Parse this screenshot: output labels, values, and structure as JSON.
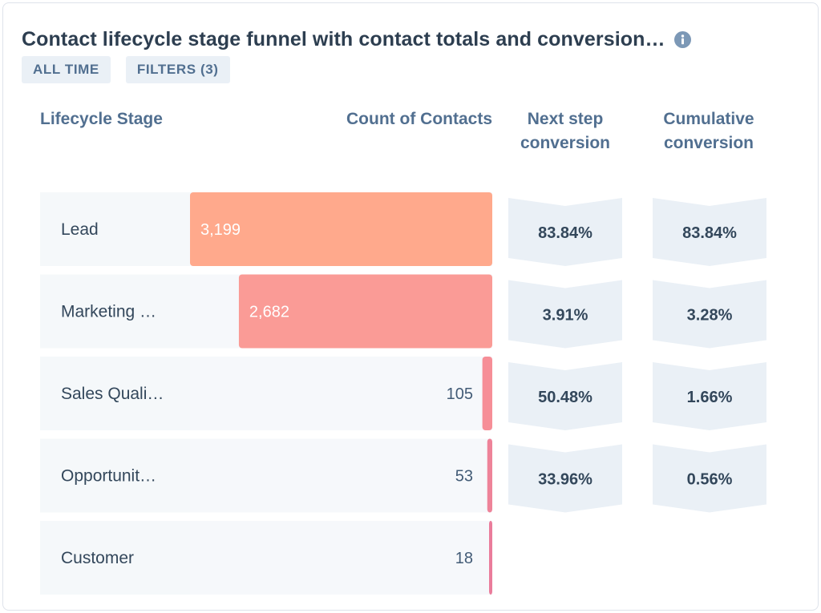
{
  "header": {
    "title": "Contact lifecycle stage funnel with contact totals and conversion…",
    "info_icon": "info-icon",
    "chips": [
      {
        "label": "ALL TIME"
      },
      {
        "label": "FILTERS (3)"
      }
    ]
  },
  "columns": {
    "stage": "Lifecycle Stage",
    "count": "Count of Contacts",
    "next": "Next step conversion",
    "cumulative": "Cumulative conversion"
  },
  "colors": {
    "bars": [
      "#ffa98c",
      "#fa9b96",
      "#f68e97",
      "#ee8399",
      "#ea7c9b"
    ]
  },
  "chart_data": {
    "type": "bar",
    "orientation": "horizontal-funnel",
    "categories": [
      "Lead",
      "Marketing …",
      "Sales Quali…",
      "Opportunit…",
      "Customer"
    ],
    "values": [
      3199,
      2682,
      105,
      53,
      18
    ],
    "value_labels": [
      "3,199",
      "2,682",
      "105",
      "53",
      "18"
    ],
    "next_step_conversion": [
      "83.84%",
      "3.91%",
      "50.48%",
      "33.96%"
    ],
    "cumulative_conversion": [
      "83.84%",
      "3.28%",
      "1.66%",
      "0.56%"
    ],
    "title": "Contact lifecycle stage funnel with contact totals and conversion…",
    "xlabel": "Count of Contacts",
    "ylabel": "Lifecycle Stage",
    "xlim": [
      0,
      3199
    ]
  }
}
